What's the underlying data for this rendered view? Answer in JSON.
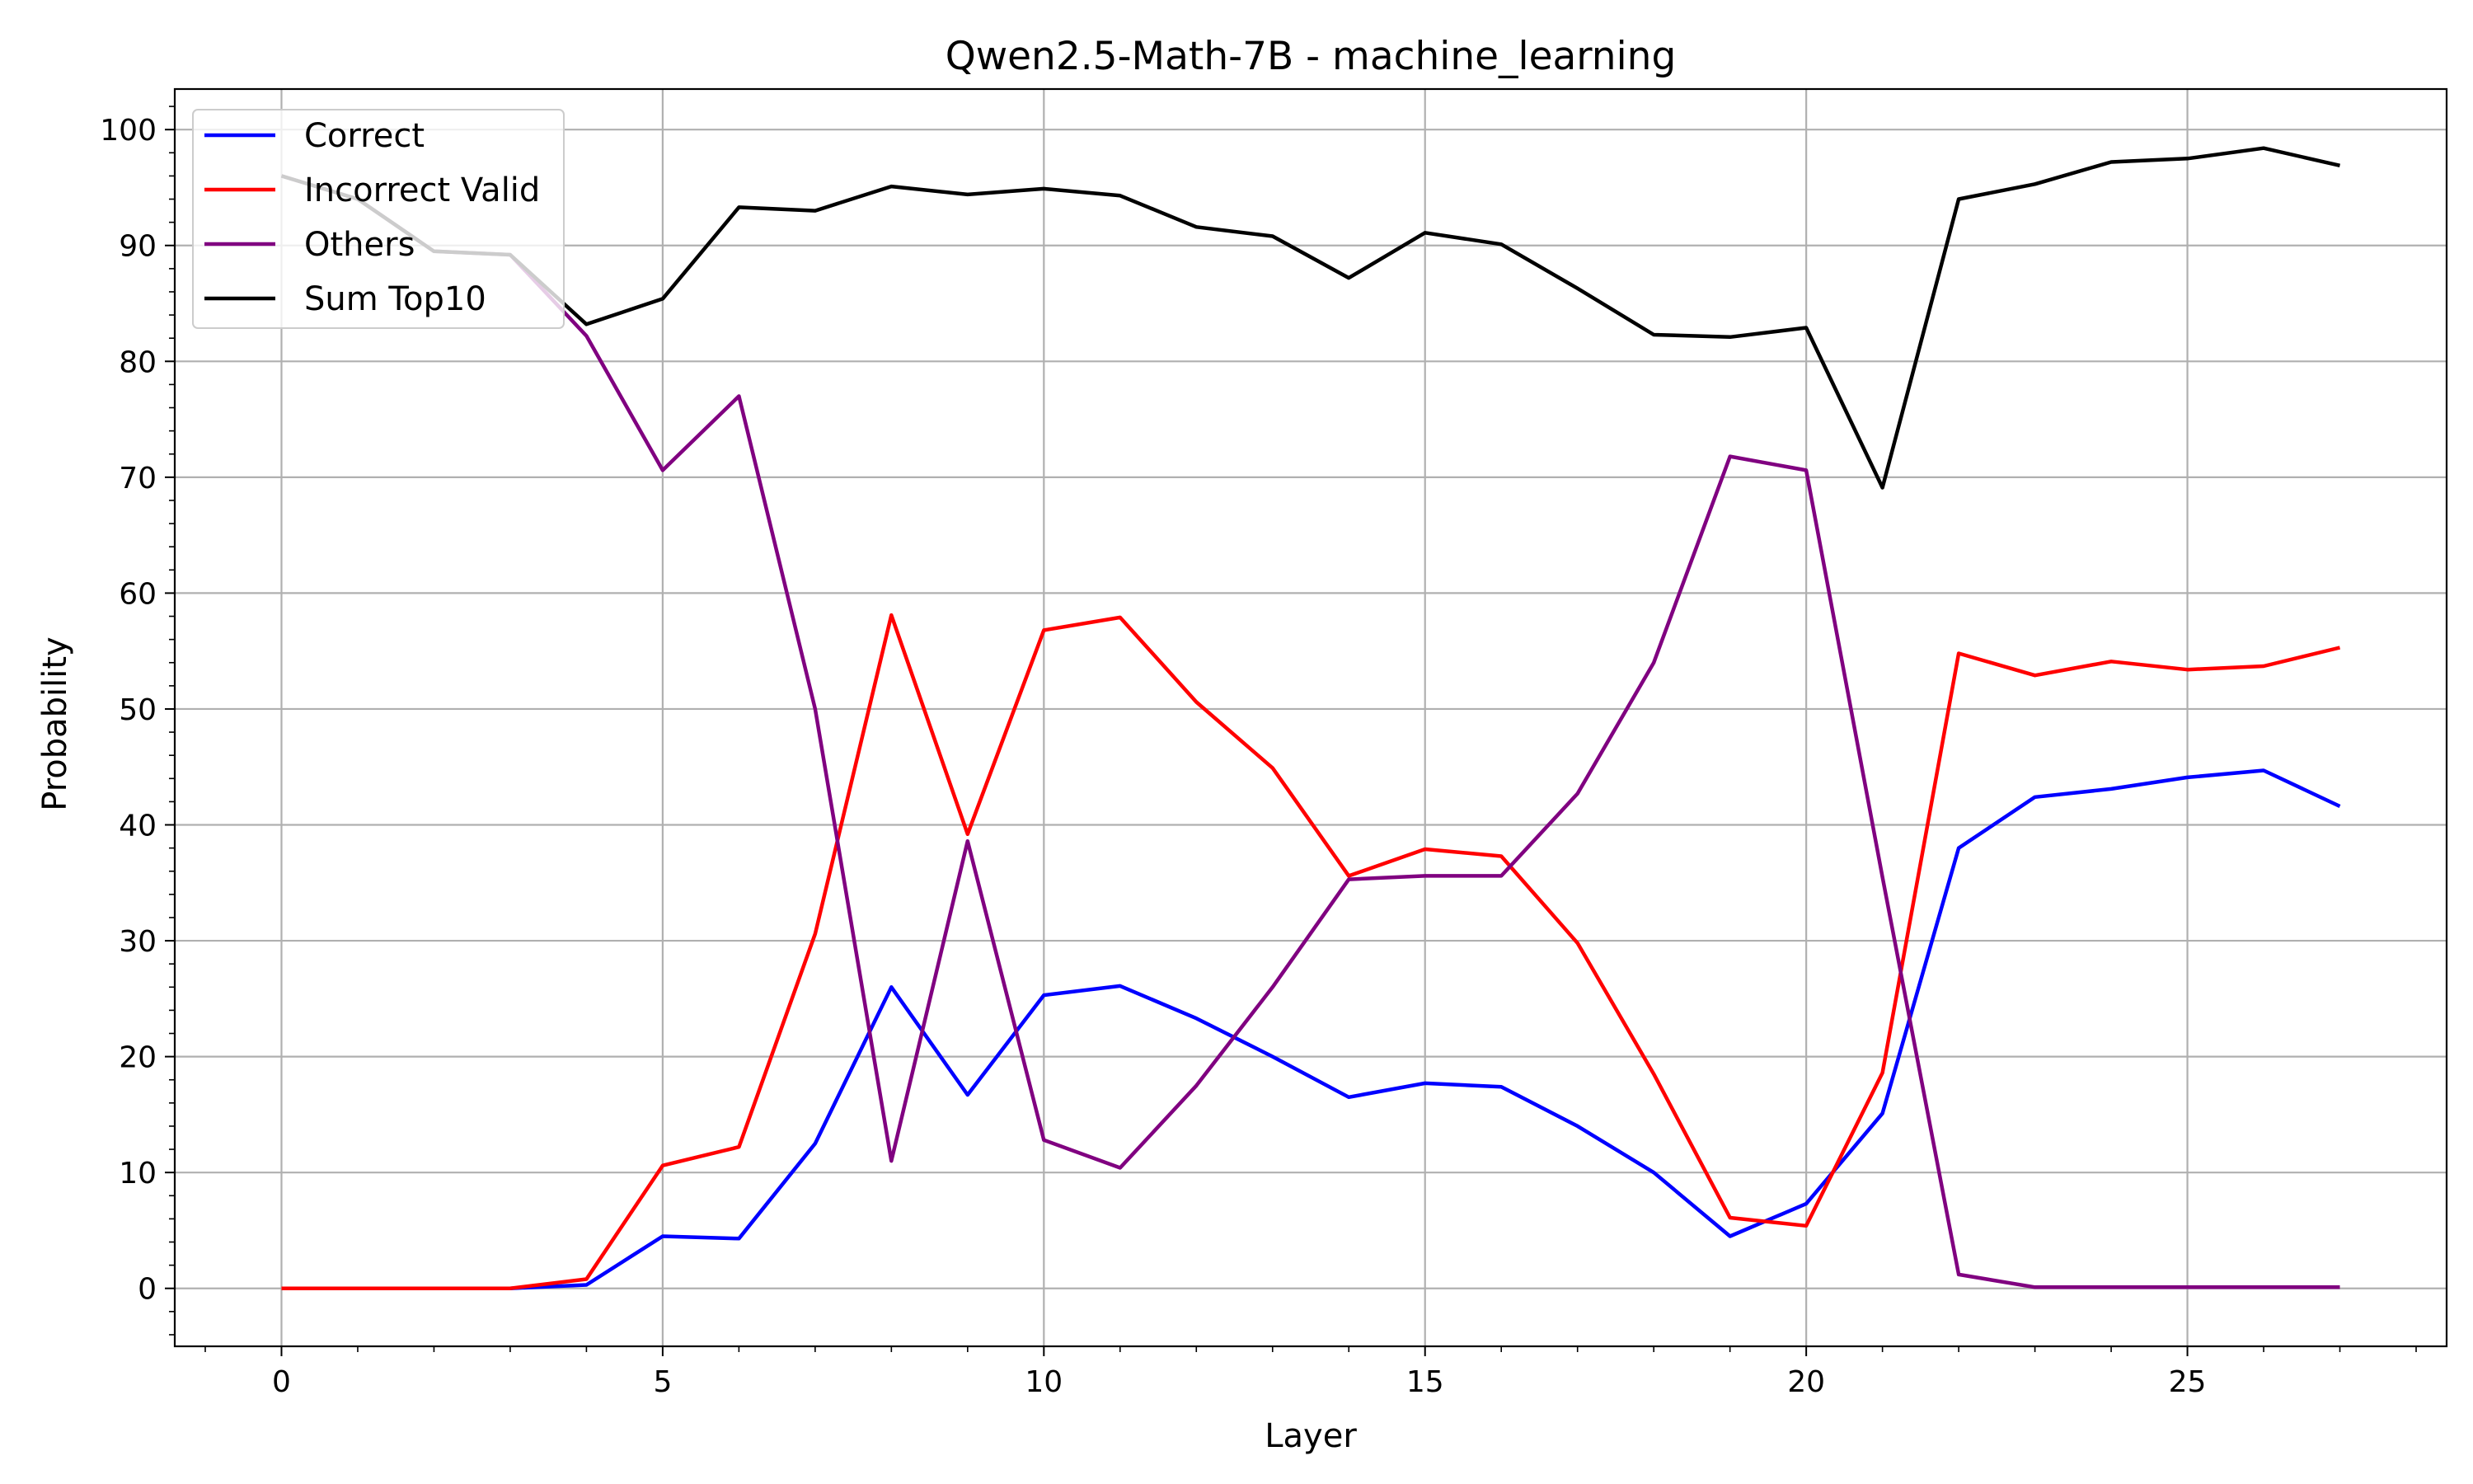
{
  "chart_data": {
    "type": "line",
    "title": "Qwen2.5-Math-7B - machine_learning",
    "xlabel": "Layer",
    "ylabel": "Probability",
    "xlim": [
      -1.4,
      28.4
    ],
    "ylim": [
      -5,
      103.5
    ],
    "xticks": [
      0,
      5,
      10,
      15,
      20,
      25
    ],
    "yticks": [
      0,
      10,
      20,
      30,
      40,
      50,
      60,
      70,
      80,
      90,
      100
    ],
    "grid": true,
    "legend_position": "top-left",
    "x": [
      0,
      1,
      2,
      3,
      4,
      5,
      6,
      7,
      8,
      9,
      10,
      11,
      12,
      13,
      14,
      15,
      16,
      17,
      18,
      19,
      20,
      21,
      22,
      23,
      24,
      25,
      26,
      27
    ],
    "series": [
      {
        "name": "Correct",
        "color": "#0000ff",
        "values": [
          0,
          0,
          0,
          0,
          0.3,
          4.5,
          4.3,
          12.5,
          26,
          16.7,
          25.3,
          26.1,
          23.3,
          20,
          16.5,
          17.7,
          17.4,
          14,
          10,
          4.5,
          7.3,
          15.1,
          38,
          42.4,
          43.1,
          44.1,
          44.7,
          41.6
        ]
      },
      {
        "name": "Incorrect Valid",
        "color": "#ff0000",
        "values": [
          0,
          0,
          0,
          0,
          0.8,
          10.6,
          12.2,
          30.6,
          58.1,
          39.2,
          56.8,
          57.9,
          50.6,
          44.9,
          35.6,
          37.9,
          37.3,
          29.8,
          18.5,
          6.1,
          5.4,
          18.6,
          54.8,
          52.9,
          54.1,
          53.4,
          53.7,
          55.3
        ]
      },
      {
        "name": "Others",
        "color": "#800080",
        "values": [
          96,
          94,
          89.5,
          89.2,
          82.2,
          70.6,
          77,
          50,
          11,
          38.6,
          12.8,
          10.4,
          17.5,
          26,
          35.3,
          35.6,
          35.6,
          42.7,
          54,
          71.8,
          70.6,
          35.5,
          1.2,
          0.1,
          0.1,
          0.1,
          0.1,
          0.1
        ]
      },
      {
        "name": "Sum Top10",
        "color": "#000000",
        "values": [
          96,
          94,
          89.5,
          89.2,
          83.2,
          85.4,
          93.3,
          93,
          95.1,
          94.4,
          94.9,
          94.3,
          91.6,
          90.8,
          87.2,
          91.1,
          90.1,
          86.3,
          82.3,
          82.1,
          82.9,
          69.1,
          94,
          95.3,
          97.2,
          97.5,
          98.4,
          96.9
        ]
      }
    ]
  }
}
